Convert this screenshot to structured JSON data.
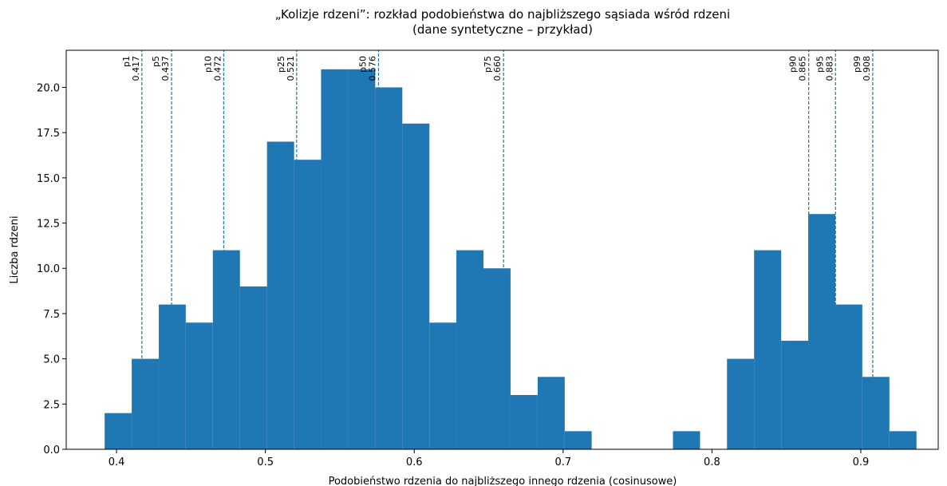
{
  "chart_data": {
    "type": "histogram",
    "title": "„Kolizje rdzeni”: rozkład podobieństwa do najbliższego sąsiada wśród rdzeni",
    "subtitle": "(dane syntetyczne – przykład)",
    "x_label": "Podobieństwo rdzenia do najbliższego innego rdzenia (cosinusowe)",
    "y_label": "Liczba rdzeni",
    "color": "#1f77b4",
    "bins": [
      0.392,
      0.4102,
      0.4284,
      0.4465,
      0.4647,
      0.4829,
      0.5011,
      0.5193,
      0.5374,
      0.5556,
      0.5738,
      0.592,
      0.6102,
      0.6283,
      0.6465,
      0.6647,
      0.6829,
      0.7011,
      0.7192,
      0.7374,
      0.7556,
      0.7738,
      0.792,
      0.8101,
      0.8283,
      0.8465,
      0.8647,
      0.8829,
      0.901,
      0.9192,
      0.9374
    ],
    "values": [
      2,
      5,
      8,
      7,
      11,
      9,
      17,
      16,
      21,
      21,
      20,
      18,
      7,
      11,
      10,
      3,
      4,
      1,
      0,
      0,
      0,
      1,
      0,
      5,
      11,
      6,
      13,
      8,
      4,
      1
    ],
    "percentiles": {
      "names": [
        "p1",
        "p5",
        "p10",
        "p25",
        "p50",
        "p75",
        "p90",
        "p95",
        "p99"
      ],
      "values": [
        0.417,
        0.437,
        0.472,
        0.521,
        0.576,
        0.66,
        0.865,
        0.883,
        0.908
      ],
      "value_labels": [
        "0.417",
        "0.437",
        "0.472",
        "0.521",
        "0.576",
        "0.660",
        "0.865",
        "0.883",
        "0.908"
      ],
      "color": "#1f77b4"
    },
    "xlim": [
      0.3662,
      0.952
    ],
    "ylim": [
      0,
      22.05
    ],
    "xticks": [
      {
        "value": 0.4,
        "label": "0.4"
      },
      {
        "value": 0.5,
        "label": "0.5"
      },
      {
        "value": 0.6,
        "label": "0.6"
      },
      {
        "value": 0.7,
        "label": "0.7"
      },
      {
        "value": 0.8,
        "label": "0.8"
      },
      {
        "value": 0.9,
        "label": "0.9"
      }
    ],
    "yticks": [
      {
        "value": 0,
        "label": "0.0"
      },
      2.5,
      {
        "value": 5,
        "label": "5.0"
      },
      7.5,
      {
        "value": 10,
        "label": "10.0"
      },
      12.5,
      {
        "value": 15,
        "label": "15.0"
      },
      17.5,
      {
        "value": 20,
        "label": "20.0"
      }
    ]
  }
}
